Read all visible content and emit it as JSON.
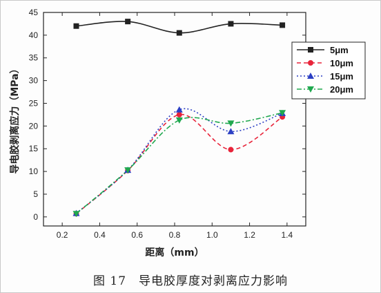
{
  "chart_data": {
    "type": "line",
    "title": "",
    "xlabel": "距离（mm）",
    "ylabel": "导电胶剥离应力（MPa）",
    "xlim": [
      0.1,
      1.5
    ],
    "ylim": [
      -2,
      45
    ],
    "xticks": [
      "0.2",
      "0.4",
      "0.6",
      "0.8",
      "1.0",
      "1.2",
      "1.4"
    ],
    "xtick_values": [
      0.2,
      0.4,
      0.6,
      0.8,
      1.0,
      1.2,
      1.4
    ],
    "yticks": [
      "0",
      "5",
      "10",
      "15",
      "20",
      "25",
      "30",
      "35",
      "40",
      "45"
    ],
    "ytick_values": [
      0,
      5,
      10,
      15,
      20,
      25,
      30,
      35,
      40,
      45
    ],
    "grid": false,
    "legend_position": "right",
    "series": [
      {
        "name": "5μm",
        "color": "#222222",
        "dash": "solid",
        "marker": "square",
        "x": [
          0.275,
          0.55,
          0.825,
          1.1,
          1.375
        ],
        "y": [
          42.0,
          43.0,
          40.5,
          42.5,
          42.2
        ]
      },
      {
        "name": "10μm",
        "color": "#e8243a",
        "dash": "dashed",
        "marker": "circle",
        "x": [
          0.275,
          0.55,
          0.825,
          1.1,
          1.375
        ],
        "y": [
          0.7,
          10.2,
          22.5,
          14.8,
          22.0
        ]
      },
      {
        "name": "15μm",
        "color": "#2b3fc4",
        "dash": "dotted",
        "marker": "triangle-up",
        "x": [
          0.275,
          0.55,
          0.825,
          1.1,
          1.375
        ],
        "y": [
          0.8,
          10.3,
          23.6,
          18.8,
          22.8
        ]
      },
      {
        "name": "20μm",
        "color": "#20a84f",
        "dash": "dashdot",
        "marker": "triangle-down",
        "x": [
          0.275,
          0.55,
          0.825,
          1.1,
          1.375
        ],
        "y": [
          0.7,
          10.3,
          21.3,
          20.6,
          22.9
        ]
      }
    ]
  },
  "caption": "图 17　导电胶厚度对剥离应力影响"
}
